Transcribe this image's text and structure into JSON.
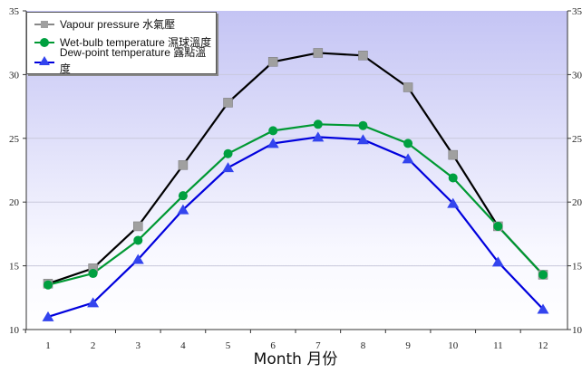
{
  "chart_data": {
    "type": "line",
    "x": [
      1,
      2,
      3,
      4,
      5,
      6,
      7,
      8,
      9,
      10,
      11,
      12
    ],
    "xtick_labels": [
      "1",
      "2",
      "3",
      "4",
      "5",
      "6",
      "7",
      "8",
      "9",
      "10",
      "11",
      "12"
    ],
    "xlabel": "Month 月份",
    "ylim": [
      10,
      35
    ],
    "yticks": [
      10,
      15,
      20,
      25,
      30,
      35
    ],
    "grid": true,
    "legend_position": "top-left",
    "series": [
      {
        "name": "Vapour pressure 水氣壓",
        "color": "#000000",
        "marker_color": "#a0a0a0",
        "marker": "cube",
        "values": [
          13.6,
          14.8,
          18.1,
          22.9,
          27.8,
          31.0,
          31.7,
          31.5,
          29.0,
          23.7,
          18.1,
          14.3
        ]
      },
      {
        "name": "Wet-bulb temperature 濕球溫度",
        "color": "#009933",
        "marker_color": "#00a040",
        "marker": "circle",
        "values": [
          13.5,
          14.4,
          17.0,
          20.5,
          23.8,
          25.6,
          26.1,
          26.0,
          24.6,
          21.9,
          18.1,
          14.3
        ]
      },
      {
        "name": "Dew-point temperature 露點溫度",
        "color": "#0000dd",
        "marker_color": "#3344ee",
        "marker": "triangle",
        "values": [
          11.0,
          12.1,
          15.5,
          19.4,
          22.7,
          24.6,
          25.1,
          24.9,
          23.4,
          19.9,
          15.3,
          11.6
        ]
      }
    ]
  }
}
